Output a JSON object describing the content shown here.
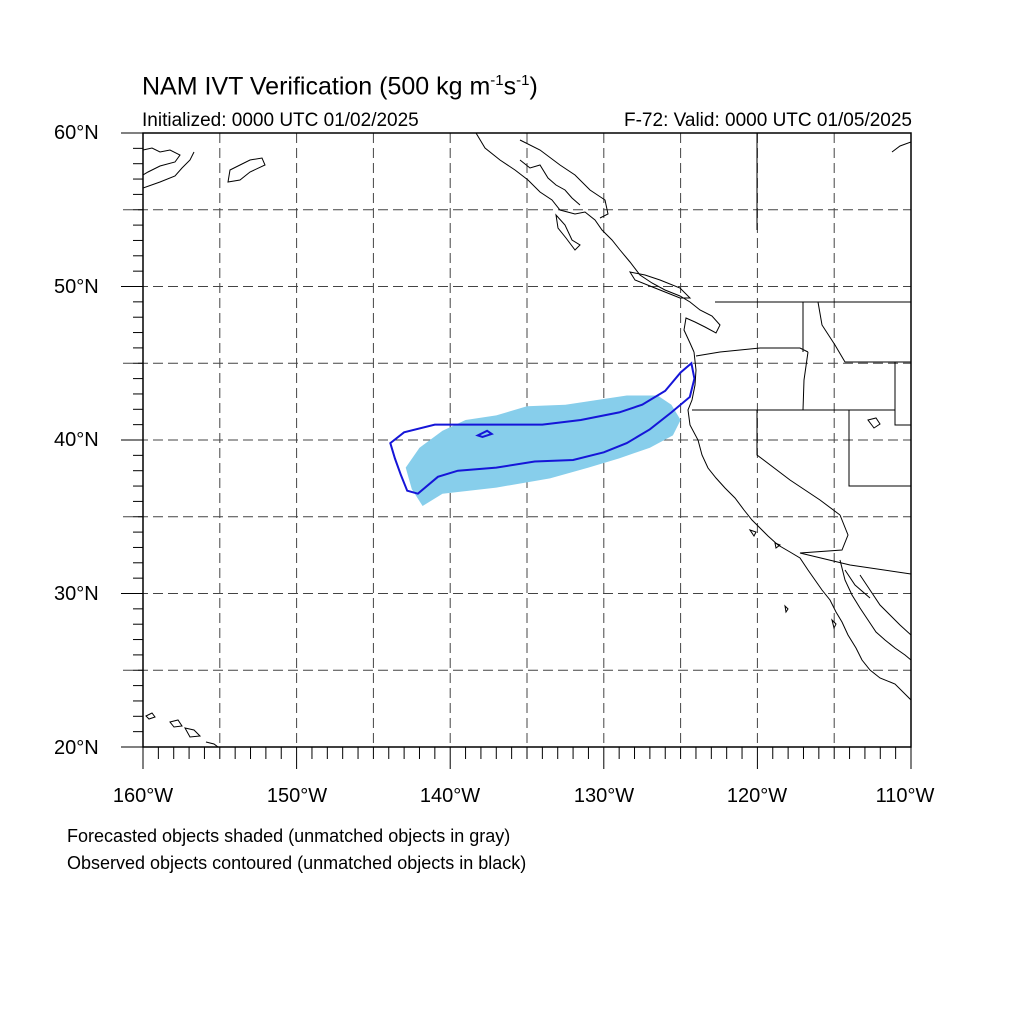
{
  "title": {
    "main": "NAM IVT Verification (500 kg m",
    "exp1": "-1",
    "mid": "s",
    "exp2": "-1",
    "end": ")"
  },
  "subtitle_left": "Initialized: 0000 UTC 01/02/2025",
  "subtitle_right": "F-72: Valid: 0000 UTC 01/05/2025",
  "footnotes": [
    "Forecasted objects shaded (unmatched objects in gray)",
    "Observed objects contoured (unmatched objects in black)"
  ],
  "map": {
    "lon_range": [
      -160,
      -110
    ],
    "lat_range": [
      20,
      60
    ],
    "lat_labels": [
      "60°N",
      "50°N",
      "40°N",
      "30°N",
      "20°N"
    ],
    "lon_labels": [
      "160°W",
      "150°W",
      "140°W",
      "130°W",
      "120°W",
      "110°W"
    ],
    "grid_lines": "dashed, every 5 degrees",
    "forecast_object": {
      "color": "#87ceeb",
      "outline": [
        [
          -141.8,
          35.7
        ],
        [
          -140.5,
          36.5
        ],
        [
          -137,
          36.9
        ],
        [
          -133.5,
          37.5
        ],
        [
          -131,
          38.2
        ],
        [
          -129,
          38.8
        ],
        [
          -127,
          39.5
        ],
        [
          -125.5,
          40.3
        ],
        [
          -125,
          41.3
        ],
        [
          -125.6,
          42.3
        ],
        [
          -126.5,
          42.9
        ],
        [
          -128.5,
          42.9
        ],
        [
          -130.5,
          42.6
        ],
        [
          -132.5,
          42.3
        ],
        [
          -135,
          42.2
        ],
        [
          -137,
          41.6
        ],
        [
          -139,
          41.3
        ],
        [
          -140.5,
          40.6
        ],
        [
          -142,
          39.5
        ],
        [
          -142.9,
          38.2
        ],
        [
          -142.5,
          36.8
        ]
      ]
    },
    "observed_object": {
      "color": "#1515d8",
      "outline": [
        [
          -143.9,
          39.8
        ],
        [
          -143,
          40.5
        ],
        [
          -141,
          41
        ],
        [
          -138,
          41
        ],
        [
          -134,
          41
        ],
        [
          -131.5,
          41.3
        ],
        [
          -129,
          41.8
        ],
        [
          -127.5,
          42.3
        ],
        [
          -126,
          43.2
        ],
        [
          -125,
          44.4
        ],
        [
          -124.3,
          45
        ],
        [
          -124.1,
          44
        ],
        [
          -124.4,
          42.8
        ],
        [
          -125.6,
          41.8
        ],
        [
          -127,
          40.7
        ],
        [
          -128.5,
          39.8
        ],
        [
          -130,
          39.2
        ],
        [
          -132,
          38.7
        ],
        [
          -134.5,
          38.6
        ],
        [
          -137,
          38.2
        ],
        [
          -139.5,
          38
        ],
        [
          -140.8,
          37.6
        ],
        [
          -142.1,
          36.5
        ],
        [
          -142.8,
          36.7
        ],
        [
          -143.2,
          37.7
        ],
        [
          -143.6,
          38.8
        ]
      ],
      "hole": [
        [
          -138.2,
          40.3
        ],
        [
          -137.6,
          40.6
        ],
        [
          -137.3,
          40.4
        ],
        [
          -137.9,
          40.2
        ]
      ]
    }
  }
}
